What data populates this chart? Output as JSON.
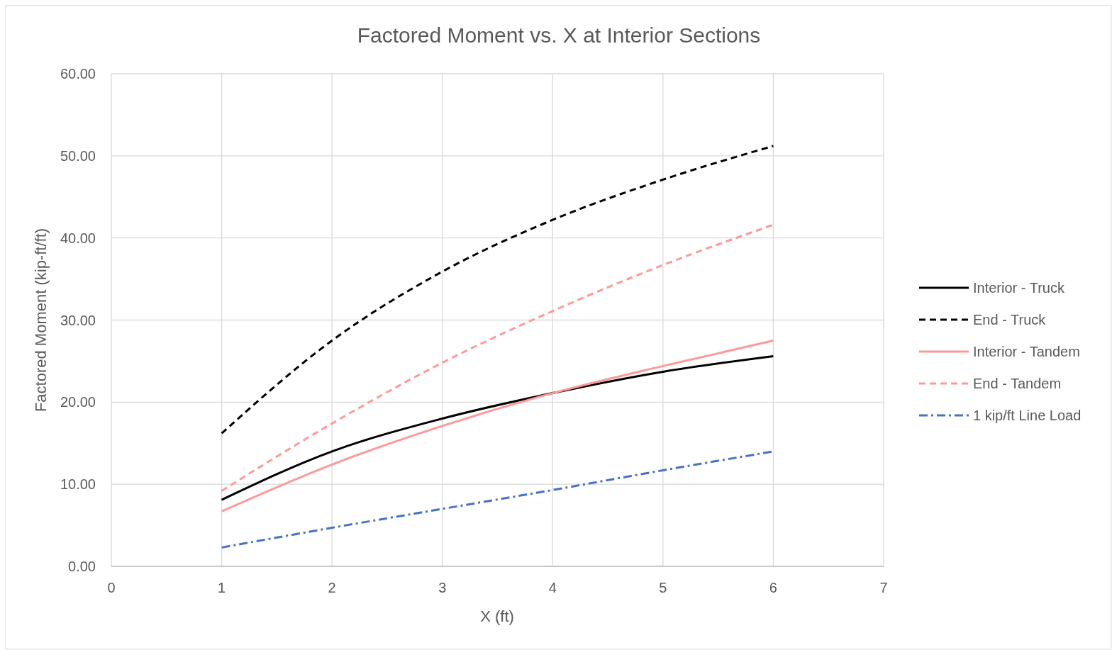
{
  "chart_data": {
    "type": "line",
    "title": "Factored Moment vs. X at Interior Sections",
    "xlabel": "X (ft)",
    "ylabel": "Factored Moment (kip-ft/ft)",
    "x": [
      1,
      2,
      3,
      4,
      5,
      6
    ],
    "series": [
      {
        "name": "Interior - Truck",
        "color": "#000000",
        "line_style": "solid",
        "values": [
          8.1,
          14.0,
          18.0,
          21.1,
          23.7,
          25.6
        ]
      },
      {
        "name": "End - Truck",
        "color": "#000000",
        "line_style": "dashed",
        "values": [
          16.2,
          27.5,
          35.9,
          42.2,
          47.1,
          51.2
        ]
      },
      {
        "name": "Interior - Tandem",
        "color": "#ff9999",
        "line_style": "solid",
        "values": [
          6.7,
          12.4,
          17.1,
          21.1,
          24.4,
          27.5
        ]
      },
      {
        "name": "End - Tandem",
        "color": "#ff9999",
        "line_style": "dashed",
        "values": [
          9.2,
          17.4,
          24.8,
          31.1,
          36.7,
          41.6
        ]
      },
      {
        "name": "1 kip/ft Line Load",
        "color": "#4472c4",
        "line_style": "dashdot",
        "values": [
          2.3,
          4.7,
          7.0,
          9.3,
          11.7,
          14.0
        ]
      }
    ],
    "xlim": [
      0,
      7
    ],
    "xticks": [
      0,
      1,
      2,
      3,
      4,
      5,
      6,
      7
    ],
    "ylim": [
      0,
      60
    ],
    "yticks": [
      {
        "value": 0,
        "label": "0.00"
      },
      {
        "value": 10,
        "label": "10.00"
      },
      {
        "value": 20,
        "label": "20.00"
      },
      {
        "value": 30,
        "label": "30.00"
      },
      {
        "value": 40,
        "label": "40.00"
      },
      {
        "value": 50,
        "label": "50.00"
      },
      {
        "value": 60,
        "label": "60.00"
      }
    ],
    "grid": true,
    "legend": "right",
    "marker": "none"
  }
}
